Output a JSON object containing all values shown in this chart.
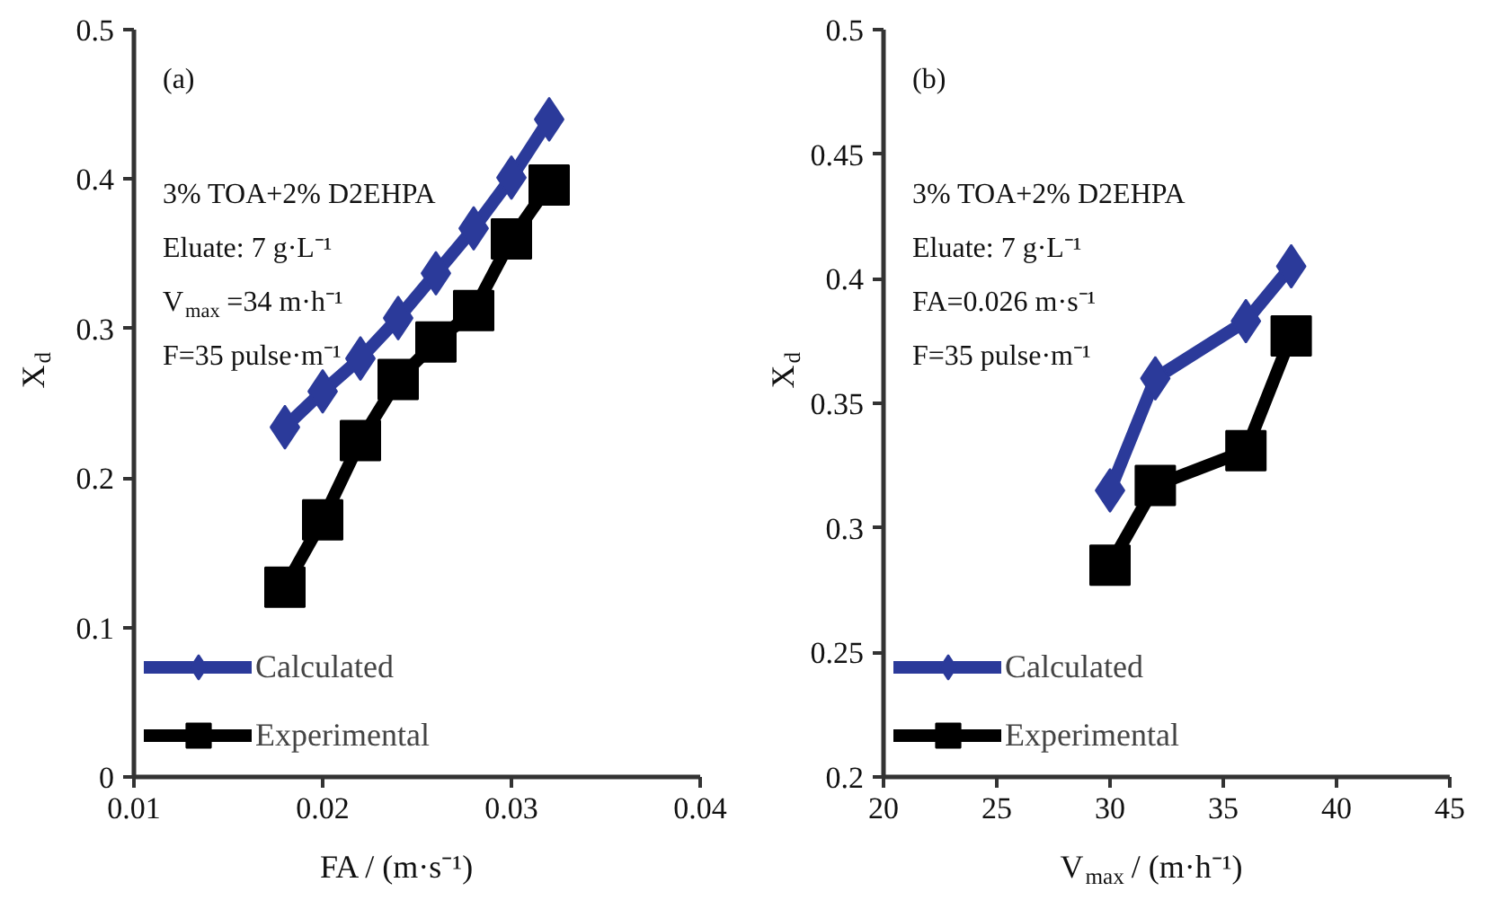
{
  "chart_data": [
    {
      "type": "line",
      "xlabel": "FA / (m·s⁻¹)",
      "ylabel": "X$_{d}$",
      "annotations": [
        "(a)",
        "3% TOA+2% D2EHPA",
        "Eluate: 7 g·L⁻¹",
        "V$_{max}$=34 m·h⁻¹",
        "F=35 pulse·m⁻¹"
      ],
      "x": [
        0.018,
        0.02,
        0.022,
        0.024,
        0.026,
        0.028,
        0.03,
        0.032
      ],
      "series": [
        {
          "name": "Calculated",
          "color": "#2b3a9a",
          "marker": "diamond",
          "values": [
            0.234,
            0.258,
            0.28,
            0.307,
            0.337,
            0.367,
            0.401,
            0.44
          ]
        },
        {
          "name": "Experimental",
          "color": "#000000",
          "marker": "square",
          "values": [
            0.127,
            0.172,
            0.225,
            0.266,
            0.291,
            0.312,
            0.36,
            0.396
          ]
        }
      ],
      "xlim": [
        0.01,
        0.04
      ],
      "xticks": [
        0.01,
        0.02,
        0.03,
        0.04
      ],
      "ylim": [
        0,
        0.5
      ],
      "yticks": [
        0,
        0.1,
        0.2,
        0.3,
        0.4,
        0.5
      ],
      "grid": false,
      "legend": "bottom left",
      "line_style": "solid"
    },
    {
      "type": "line",
      "xlabel": "V$_{max}$ / (m·h⁻¹)",
      "ylabel": "X$_{d}$",
      "annotations": [
        "(b)",
        "3% TOA+2% D2EHPA",
        "Eluate: 7 g·L⁻¹",
        "FA=0.026 m·s⁻¹",
        "F=35 pulse·m⁻¹"
      ],
      "x": [
        30,
        32,
        36,
        38
      ],
      "series": [
        {
          "name": "Calculated",
          "color": "#2b3a9a",
          "marker": "diamond",
          "values": [
            0.315,
            0.36,
            0.383,
            0.405
          ]
        },
        {
          "name": "Experimental",
          "color": "#000000",
          "marker": "square",
          "values": [
            0.285,
            0.317,
            0.331,
            0.377
          ]
        }
      ],
      "xlim": [
        20,
        45
      ],
      "xticks": [
        20,
        25,
        30,
        35,
        40,
        45
      ],
      "ylim": [
        0.2,
        0.5
      ],
      "yticks": [
        0.2,
        0.25,
        0.3,
        0.35,
        0.4,
        0.45,
        0.5
      ],
      "grid": false,
      "legend": "bottom left",
      "line_style": "solid"
    }
  ]
}
